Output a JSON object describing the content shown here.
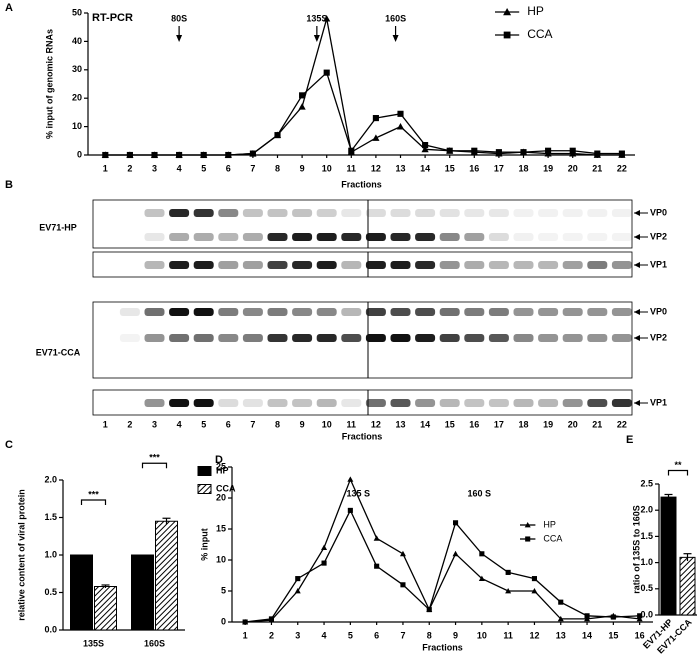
{
  "chart_data": [
    {
      "type": "line",
      "panel": "A",
      "title": "RT-PCR",
      "ylabel": "% input of genomic RNAs",
      "xlabel": "Fractions",
      "categories": [
        1,
        2,
        3,
        4,
        5,
        6,
        7,
        8,
        9,
        10,
        11,
        12,
        13,
        14,
        15,
        16,
        17,
        18,
        19,
        20,
        21,
        22
      ],
      "series": [
        {
          "name": "HP",
          "color": "#000000",
          "marker": "triangle",
          "values": [
            0,
            0,
            0,
            0,
            0,
            0,
            0.5,
            7,
            17,
            48,
            1,
            6,
            10,
            2,
            1.5,
            1,
            0.5,
            1,
            0.5,
            0.5,
            0,
            0
          ]
        },
        {
          "name": "CCA",
          "color": "#000000",
          "marker": "square",
          "values": [
            0,
            0,
            0,
            0,
            0,
            0,
            0.5,
            7,
            21,
            29,
            1.5,
            13,
            14.5,
            3.5,
            1.5,
            1.5,
            1,
            1,
            1.5,
            1.5,
            0.5,
            0.5
          ]
        }
      ],
      "ylim": [
        0,
        50
      ],
      "yticks": [
        0,
        10,
        20,
        30,
        40,
        50
      ],
      "legend": "upper right",
      "annotations": [
        {
          "text": "80S",
          "x": 4
        },
        {
          "text": "135S",
          "x": 9.6
        },
        {
          "text": "160S",
          "x": 12.8
        }
      ]
    },
    {
      "type": "bar",
      "panel": "C",
      "ylabel": "relative content of viral protein",
      "categories": [
        "135S",
        "160S"
      ],
      "series": [
        {
          "name": "HP",
          "color": "#000000",
          "hatch": false,
          "values": [
            1,
            1
          ]
        },
        {
          "name": "CCA",
          "color": "#000000",
          "hatch": true,
          "values": [
            0.58,
            1.45
          ],
          "errors": [
            0.02,
            0.04
          ]
        }
      ],
      "ylim": [
        0,
        2
      ],
      "yticks": [
        {
          "value": 0,
          "label": "0.0"
        },
        0.5,
        {
          "value": 1,
          "label": "1.0"
        },
        1.5,
        {
          "value": 2,
          "label": "2.0"
        }
      ],
      "legend": "upper right",
      "annotations": [
        {
          "text": "***",
          "category": 0
        },
        {
          "text": "***",
          "category": 1
        }
      ]
    },
    {
      "type": "line",
      "panel": "D",
      "ylabel": "% input",
      "xlabel": "Fractions",
      "categories": [
        1,
        2,
        3,
        4,
        5,
        6,
        7,
        8,
        9,
        10,
        11,
        12,
        13,
        14,
        15,
        16
      ],
      "series": [
        {
          "name": "HP",
          "color": "#000000",
          "marker": "triangle",
          "values": [
            0,
            0.3,
            5,
            12,
            23,
            13.5,
            11,
            2,
            11,
            7,
            5,
            5,
            0.5,
            0.5,
            1,
            0.5
          ]
        },
        {
          "name": "CCA",
          "color": "#000000",
          "marker": "square",
          "values": [
            0,
            0.5,
            7,
            9.5,
            18,
            9,
            6,
            2,
            16,
            11,
            8,
            7,
            3.2,
            1,
            0.8,
            1
          ]
        }
      ],
      "ylim": [
        0,
        25
      ],
      "yticks": [
        0,
        5,
        10,
        15,
        20,
        25
      ],
      "legend": "center right",
      "annotations": [
        {
          "text": "135 S",
          "x": 5.3
        },
        {
          "text": "160 S",
          "x": 9.9
        }
      ]
    },
    {
      "type": "bar",
      "panel": "E",
      "ylabel": "ratio of 135S to 160S",
      "categories": [
        "EV71-HP",
        "EV71-CCA"
      ],
      "xtick_rotation": 45,
      "series": [
        {
          "name": null,
          "color": "#000000",
          "hatch_by_category": [
            false,
            true
          ],
          "values": [
            2.25,
            1.1
          ],
          "errors": [
            0.05,
            0.07
          ]
        }
      ],
      "ylim": [
        0,
        2.5
      ],
      "yticks": [
        {
          "value": 0,
          "label": "0.0"
        },
        0.5,
        {
          "value": 1,
          "label": "1.0"
        },
        1.5,
        {
          "value": 2,
          "label": "2.0"
        },
        2.5
      ],
      "annotations": [
        {
          "text": "**"
        }
      ]
    }
  ],
  "blots": {
    "panel": "B",
    "xlabel": "Fractions",
    "lanes": [
      1,
      2,
      3,
      4,
      5,
      6,
      7,
      8,
      9,
      10,
      11,
      12,
      13,
      14,
      15,
      16,
      17,
      18,
      19,
      20,
      21,
      22
    ],
    "groups": [
      {
        "name": "EV71-HP",
        "bands": [
          "VP0",
          "VP2",
          "VP1"
        ]
      },
      {
        "name": "EV71-CCA",
        "bands": [
          "VP0",
          "VP2",
          "VP1"
        ]
      }
    ]
  }
}
